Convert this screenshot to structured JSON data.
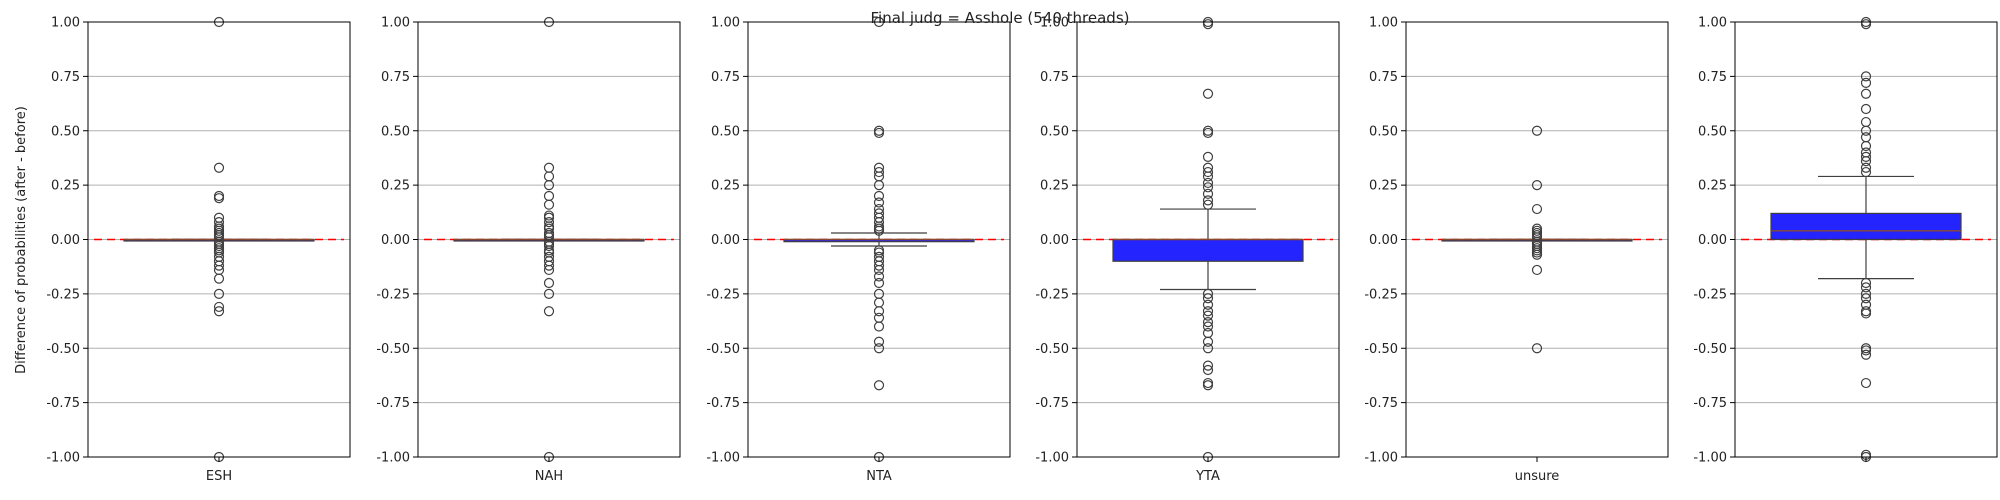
{
  "chart_data": {
    "type": "box",
    "title": "Final judg = Asshole (540 threads)",
    "ylabel": "Difference of probabilities (after - before)",
    "ylim": [
      -1.0,
      1.0
    ],
    "yticks": [
      "-1.00",
      "-0.75",
      "-0.50",
      "-0.25",
      "0.00",
      "0.25",
      "0.50",
      "0.75",
      "1.00"
    ],
    "ytick_values": [
      -1.0,
      -0.75,
      -0.5,
      -0.25,
      0.0,
      0.25,
      0.5,
      0.75,
      1.0
    ],
    "grid": "horizontal",
    "reference_line": {
      "y": 0.0,
      "color": "#ff0000",
      "style": "dashed"
    },
    "box_color": "#0000ff",
    "median_color": "#8b4a2f",
    "panels": [
      {
        "category": "ESH",
        "q1": 0.0,
        "median": 0.0,
        "q3": 0.0,
        "whisker_low": 0.0,
        "whisker_high": 0.0,
        "outliers": [
          1.0,
          0.33,
          0.2,
          0.19,
          0.1,
          0.08,
          0.06,
          0.05,
          0.04,
          0.03,
          0.02,
          0.01,
          -0.01,
          -0.02,
          -0.03,
          -0.04,
          -0.05,
          -0.06,
          -0.08,
          -0.1,
          -0.12,
          -0.14,
          -0.18,
          -0.25,
          -0.31,
          -0.33,
          -1.0
        ]
      },
      {
        "category": "NAH",
        "q1": 0.0,
        "median": 0.0,
        "q3": 0.0,
        "whisker_low": 0.0,
        "whisker_high": 0.0,
        "outliers": [
          1.0,
          0.33,
          0.29,
          0.25,
          0.2,
          0.16,
          0.11,
          0.1,
          0.08,
          0.06,
          0.05,
          0.03,
          0.02,
          0.01,
          -0.01,
          -0.02,
          -0.03,
          -0.05,
          -0.06,
          -0.08,
          -0.1,
          -0.12,
          -0.14,
          -0.2,
          -0.25,
          -0.33,
          -1.0
        ]
      },
      {
        "category": "NTA",
        "q1": -0.01,
        "median": 0.0,
        "q3": 0.0,
        "whisker_low": -0.03,
        "whisker_high": 0.03,
        "outliers": [
          1.0,
          0.5,
          0.49,
          0.33,
          0.31,
          0.29,
          0.25,
          0.2,
          0.17,
          0.14,
          0.12,
          0.1,
          0.08,
          0.06,
          0.05,
          0.04,
          -0.05,
          -0.06,
          -0.08,
          -0.1,
          -0.12,
          -0.14,
          -0.17,
          -0.2,
          -0.25,
          -0.29,
          -0.33,
          -0.36,
          -0.4,
          -0.47,
          -0.5,
          -0.67,
          -1.0
        ]
      },
      {
        "category": "YTA",
        "q1": -0.1,
        "median": 0.0,
        "q3": 0.0,
        "whisker_low": -0.23,
        "whisker_high": 0.14,
        "outliers": [
          1.0,
          0.99,
          0.67,
          0.5,
          0.49,
          0.38,
          0.33,
          0.31,
          0.29,
          0.26,
          0.24,
          0.21,
          0.18,
          0.16,
          -0.25,
          -0.27,
          -0.3,
          -0.33,
          -0.35,
          -0.38,
          -0.4,
          -0.43,
          -0.47,
          -0.5,
          -0.58,
          -0.6,
          -0.66,
          -0.67,
          -1.0
        ]
      },
      {
        "category": "unsure",
        "q1": 0.0,
        "median": 0.0,
        "q3": 0.0,
        "whisker_low": 0.0,
        "whisker_high": 0.0,
        "outliers": [
          0.5,
          0.25,
          0.14,
          0.05,
          0.04,
          0.03,
          0.02,
          0.01,
          -0.01,
          -0.02,
          -0.03,
          -0.04,
          -0.05,
          -0.06,
          -0.07,
          -0.14,
          -0.5
        ]
      },
      {
        "category": "",
        "q1": 0.0,
        "median": 0.04,
        "q3": 0.12,
        "whisker_low": -0.18,
        "whisker_high": 0.29,
        "outliers": [
          1.0,
          0.99,
          0.75,
          0.72,
          0.67,
          0.6,
          0.54,
          0.5,
          0.47,
          0.43,
          0.4,
          0.38,
          0.36,
          0.33,
          0.31,
          -0.2,
          -0.22,
          -0.25,
          -0.27,
          -0.3,
          -0.33,
          -0.34,
          -0.5,
          -0.51,
          -0.53,
          -0.66,
          -1.0,
          -0.99
        ]
      }
    ]
  }
}
